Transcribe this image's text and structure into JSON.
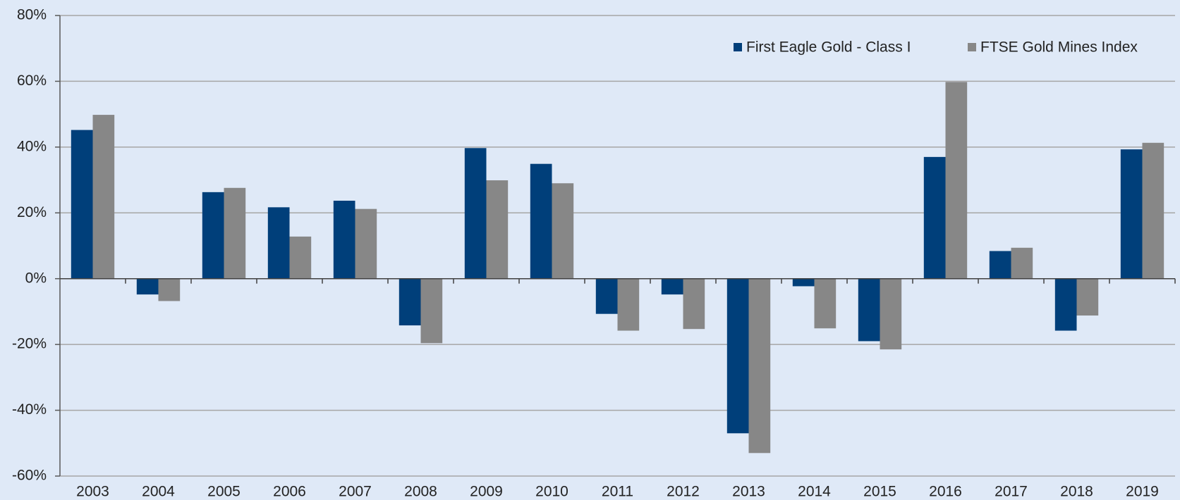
{
  "chart_data": {
    "type": "bar",
    "categories": [
      "2003",
      "2004",
      "2005",
      "2006",
      "2007",
      "2008",
      "2009",
      "2010",
      "2011",
      "2012",
      "2013",
      "2014",
      "2015",
      "2016",
      "2017",
      "2018",
      "2019"
    ],
    "series": [
      {
        "name": "First Eagle Gold - Class I",
        "color": "#003f7a",
        "values": [
          45.2,
          -4.8,
          26.3,
          21.7,
          23.7,
          -14.2,
          39.7,
          34.9,
          -10.7,
          -4.8,
          -47.0,
          -2.3,
          -19.0,
          37.0,
          8.4,
          -15.8,
          39.3
        ]
      },
      {
        "name": "FTSE Gold Mines Index",
        "color": "#878787",
        "values": [
          49.8,
          -6.8,
          27.6,
          12.8,
          21.2,
          -19.6,
          29.9,
          29.0,
          -15.8,
          -15.3,
          -53.0,
          -15.1,
          -21.5,
          59.8,
          9.4,
          -11.2,
          41.3
        ]
      }
    ],
    "ylim": [
      -60,
      80
    ],
    "yticks": [
      {
        "value": -60,
        "label": "-60%"
      },
      {
        "value": -40,
        "label": "-40%"
      },
      {
        "value": -20,
        "label": "-20%"
      },
      {
        "value": 0,
        "label": "0%"
      },
      {
        "value": 20,
        "label": "20%"
      },
      {
        "value": 40,
        "label": "40%"
      },
      {
        "value": 60,
        "label": "60%"
      },
      {
        "value": 80,
        "label": "80%"
      }
    ],
    "grid": true,
    "legend": "upper right"
  }
}
